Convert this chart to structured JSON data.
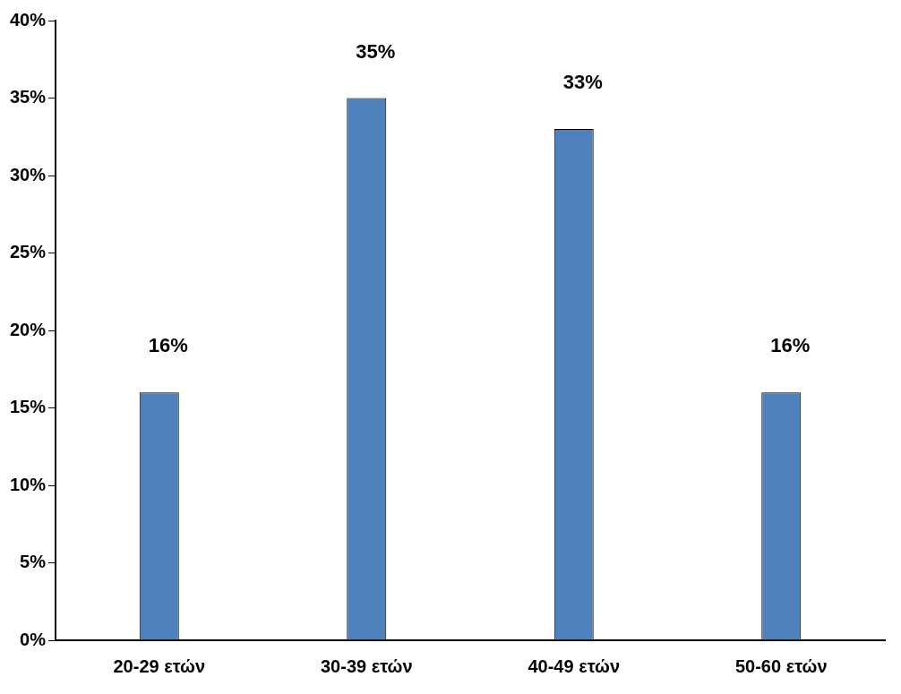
{
  "chart_data": {
    "type": "bar",
    "categories": [
      "20-29 ετών",
      "30-39 ετών",
      "40-49 ετών",
      "50-60 ετών"
    ],
    "values": [
      16,
      35,
      33,
      16
    ],
    "value_labels": [
      "16%",
      "35%",
      "33%",
      "16%"
    ],
    "color": "#4f81bd",
    "ylim": [
      0,
      40
    ],
    "yticks": [
      {
        "value": 0,
        "label": "0%"
      },
      {
        "value": 5,
        "label": "5%"
      },
      {
        "value": 10,
        "label": "10%"
      },
      {
        "value": 15,
        "label": "15%"
      },
      {
        "value": 20,
        "label": "20%"
      },
      {
        "value": 25,
        "label": "25%"
      },
      {
        "value": 30,
        "label": "30%"
      },
      {
        "value": 35,
        "label": "35%"
      },
      {
        "value": 40,
        "label": "40%"
      }
    ],
    "grid": false,
    "legend": false
  }
}
